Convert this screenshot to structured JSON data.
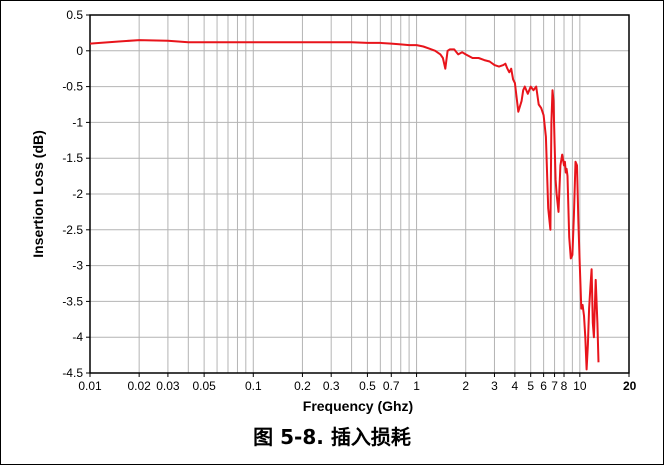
{
  "caption": "图 5-8. 插入损耗",
  "chart_data": {
    "type": "line",
    "title": "",
    "xlabel": "Frequency (Ghz)",
    "ylabel": "Insertion Loss (dB)",
    "xscale": "log",
    "xlim": [
      0.01,
      20
    ],
    "ylim": [
      -4.5,
      0.5
    ],
    "grid": true,
    "legend": "none",
    "x_ticks": [
      {
        "value": 0.01,
        "label": "0.01"
      },
      {
        "value": 0.02,
        "label": "0.02"
      },
      {
        "value": 0.03,
        "label": "0.03"
      },
      {
        "value": 0.05,
        "label": "0.05"
      },
      {
        "value": 0.1,
        "label": "0.1"
      },
      {
        "value": 0.2,
        "label": "0.2"
      },
      {
        "value": 0.3,
        "label": "0.3"
      },
      {
        "value": 0.5,
        "label": "0.5"
      },
      {
        "value": 0.7,
        "label": "0.7"
      },
      {
        "value": 1,
        "label": "1"
      },
      {
        "value": 2,
        "label": "2"
      },
      {
        "value": 3,
        "label": "3"
      },
      {
        "value": 4,
        "label": "4"
      },
      {
        "value": 5,
        "label": "5"
      },
      {
        "value": 6,
        "label": "6"
      },
      {
        "value": 7,
        "label": "7"
      },
      {
        "value": 8,
        "label": "8"
      },
      {
        "value": 10,
        "label": "10"
      },
      {
        "value": 20,
        "label": "20"
      }
    ],
    "y_ticks": [
      {
        "value": 0.5,
        "label": "0.5"
      },
      {
        "value": 0,
        "label": "0"
      },
      {
        "value": -0.5,
        "label": "-0.5"
      },
      {
        "value": -1,
        "label": "-1"
      },
      {
        "value": -1.5,
        "label": "-1.5"
      },
      {
        "value": -2,
        "label": "-2"
      },
      {
        "value": -2.5,
        "label": "-2.5"
      },
      {
        "value": -3,
        "label": "-3"
      },
      {
        "value": -3.5,
        "label": "-3.5"
      },
      {
        "value": -4,
        "label": "-4"
      },
      {
        "value": -4.5,
        "label": "-4.5"
      }
    ],
    "series": [
      {
        "color": "#e8141b",
        "x": [
          0.01,
          0.015,
          0.02,
          0.03,
          0.04,
          0.05,
          0.07,
          0.1,
          0.15,
          0.2,
          0.3,
          0.4,
          0.5,
          0.6,
          0.7,
          0.8,
          0.9,
          1.0,
          1.1,
          1.2,
          1.3,
          1.4,
          1.45,
          1.5,
          1.55,
          1.6,
          1.7,
          1.8,
          1.9,
          2.0,
          2.2,
          2.4,
          2.6,
          2.8,
          3.0,
          3.2,
          3.4,
          3.5,
          3.6,
          3.7,
          3.8,
          3.9,
          4.0,
          4.2,
          4.4,
          4.5,
          4.6,
          4.8,
          5.0,
          5.2,
          5.4,
          5.6,
          5.8,
          6.0,
          6.2,
          6.4,
          6.6,
          6.7,
          6.8,
          6.9,
          7.0,
          7.1,
          7.2,
          7.4,
          7.6,
          7.8,
          8.0,
          8.1,
          8.2,
          8.3,
          8.4,
          8.6,
          8.8,
          9.0,
          9.2,
          9.4,
          9.6,
          9.8,
          10.0,
          10.2,
          10.4,
          10.6,
          10.8,
          11.0,
          11.2,
          11.4,
          11.6,
          11.8,
          12.0,
          12.2,
          12.5,
          12.8,
          13.0
        ],
        "y": [
          0.1,
          0.13,
          0.15,
          0.14,
          0.12,
          0.12,
          0.12,
          0.12,
          0.12,
          0.12,
          0.12,
          0.12,
          0.11,
          0.11,
          0.1,
          0.09,
          0.08,
          0.08,
          0.06,
          0.03,
          0.0,
          -0.05,
          -0.1,
          -0.25,
          0.0,
          0.02,
          0.02,
          -0.05,
          -0.02,
          -0.05,
          -0.1,
          -0.1,
          -0.13,
          -0.15,
          -0.2,
          -0.22,
          -0.2,
          -0.18,
          -0.25,
          -0.3,
          -0.25,
          -0.4,
          -0.45,
          -0.85,
          -0.7,
          -0.55,
          -0.5,
          -0.6,
          -0.5,
          -0.55,
          -0.5,
          -0.75,
          -0.8,
          -0.9,
          -1.2,
          -2.2,
          -2.5,
          -1.0,
          -0.55,
          -0.7,
          -1.3,
          -1.8,
          -2.0,
          -2.25,
          -1.6,
          -1.45,
          -1.6,
          -1.55,
          -1.7,
          -1.65,
          -1.75,
          -2.6,
          -2.9,
          -2.85,
          -2.3,
          -1.55,
          -1.6,
          -2.4,
          -3.0,
          -3.6,
          -3.55,
          -3.7,
          -4.0,
          -4.45,
          -4.1,
          -3.6,
          -3.3,
          -3.05,
          -3.8,
          -4.0,
          -3.2,
          -3.8,
          -4.35
        ]
      }
    ]
  }
}
